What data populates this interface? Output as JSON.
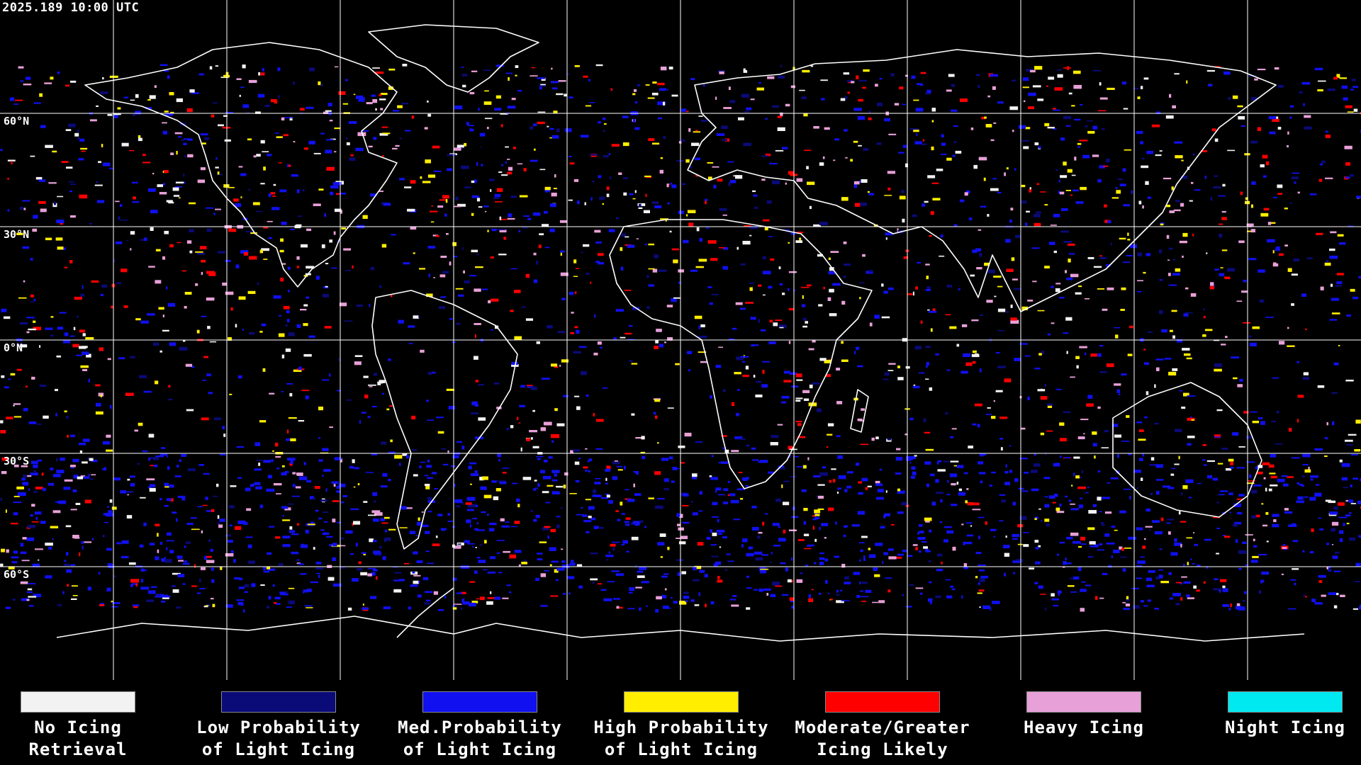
{
  "timestamp": "2025.189 10:00 UTC",
  "lat_labels": [
    "60°N",
    "30°N",
    "0°N",
    "30°S",
    "60°S"
  ],
  "colors": {
    "background": "#000000",
    "grid": "#ffffff",
    "coast": "#ffffff",
    "no_icing": "#f2f2f2",
    "low": "#0a0a78",
    "med": "#1010f0",
    "high": "#ffee00",
    "moderate": "#ff0000",
    "heavy": "#e8a0d8",
    "night": "#00e8f0"
  },
  "legend": [
    {
      "label": "No Icing\nRetrieval",
      "color": "#f2f2f2"
    },
    {
      "label": "Low Probability\nof Light Icing",
      "color": "#0a0a78"
    },
    {
      "label": "Med.Probability\nof Light Icing",
      "color": "#1010f0"
    },
    {
      "label": "High Probability\nof Light Icing",
      "color": "#ffee00"
    },
    {
      "label": "Moderate/Greater\nIcing Likely",
      "color": "#ff0000"
    },
    {
      "label": "Heavy Icing",
      "color": "#e8a0d8"
    },
    {
      "label": "Night Icing",
      "color": "#00e8f0"
    }
  ]
}
